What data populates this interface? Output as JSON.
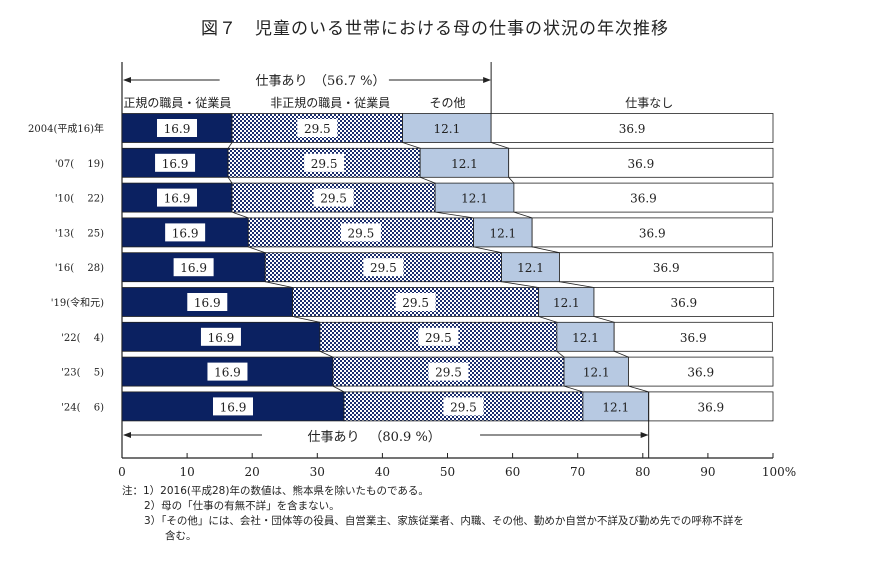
{
  "chart_data": {
    "type": "bar",
    "orientation": "horizontal",
    "stacked": true,
    "title": "図７　児童のいる世帯における母の仕事の状況の年次推移",
    "categories": [
      "2004(平成16)年",
      "'07(　 19)",
      "'10(　 22)",
      "'13(　 25)",
      "'16(　 28)",
      "'19(令和元)",
      "'22(　 4)",
      "'23(　 5)",
      "'24(　 6)"
    ],
    "series": [
      {
        "name": "正規の職員・従業員",
        "color": "#0b2161",
        "values": [
          16.9,
          16.3,
          16.9,
          19.4,
          22.0,
          26.2,
          30.4,
          32.4,
          34.1
        ]
      },
      {
        "name": "非正規の職員・従業員",
        "color": "checkered",
        "values": [
          26.2,
          29.5,
          31.2,
          34.6,
          36.3,
          37.8,
          36.4,
          35.5,
          36.7
        ]
      },
      {
        "name": "その他",
        "color": "#b7c9e2",
        "values": [
          13.6,
          13.6,
          12.1,
          9.0,
          8.9,
          8.5,
          8.8,
          9.9,
          10.1
        ]
      },
      {
        "name": "仕事なし",
        "color": "#ffffff",
        "values": [
          43.3,
          40.6,
          39.8,
          36.9,
          32.8,
          27.6,
          24.3,
          22.2,
          19.1
        ]
      }
    ],
    "xlim": [
      0,
      100
    ],
    "xticks": [
      "0",
      "10",
      "20",
      "30",
      "40",
      "50",
      "60",
      "70",
      "80",
      "90",
      "100%"
    ],
    "annotations": {
      "top": {
        "label": "仕事あり",
        "value": "（56.7 %）",
        "extent": 56.7
      },
      "bottom": {
        "label": "仕事あり",
        "value": "（80.9 %）",
        "extent": 80.9
      }
    },
    "grid": false
  },
  "notes": [
    "注：1）2016(平成28)年の数値は、熊本県を除いたものである。",
    "2）母の「仕事の有無不詳」を含まない。",
    "3）「その他」には、会社・団体等の役員、自営業主、家族従業者、内職、その他、勤めか自営か不詳及び勤め先での呼称不詳を",
    "含む。"
  ]
}
